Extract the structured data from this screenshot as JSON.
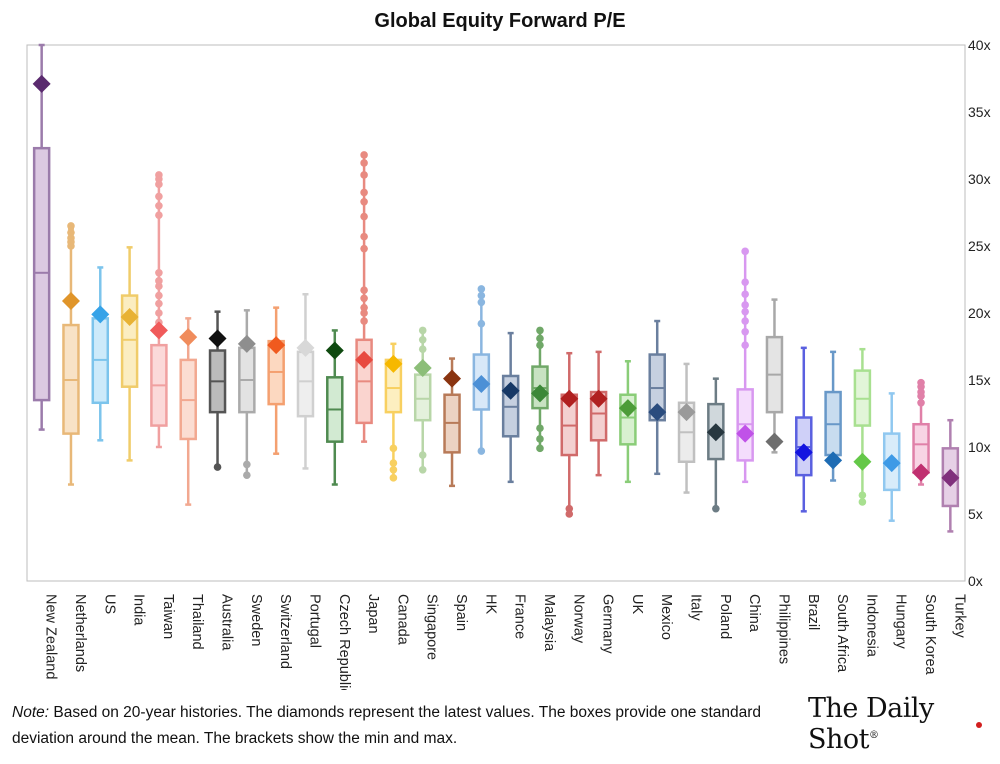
{
  "chart_data": {
    "type": "box",
    "title": "Global Equity Forward P/E",
    "ylabel": "",
    "ylim": [
      0,
      40
    ],
    "y_ticks": [
      "0x",
      "5x",
      "10x",
      "15x",
      "20x",
      "25x",
      "30x",
      "35x",
      "40x"
    ],
    "series": [
      {
        "name": "New Zealand",
        "color": "#9b7bab",
        "fill": "#dcc9e2",
        "diamond": "#5a2a6e",
        "min": 11.3,
        "max": 40,
        "q1": 13.5,
        "q3": 32.3,
        "median": 23.0,
        "latest": 37.1,
        "outliers": []
      },
      {
        "name": "Netherlands",
        "color": "#e8b878",
        "fill": "#f8e2c6",
        "diamond": "#e0952a",
        "min": 7.2,
        "max": 26.3,
        "q1": 11.0,
        "q3": 19.1,
        "median": 15.0,
        "latest": 20.9,
        "outliers": [
          25.0,
          25.3,
          25.6,
          26.0,
          26.5
        ]
      },
      {
        "name": "US",
        "color": "#7cc4ec",
        "fill": "#cdeafa",
        "diamond": "#36a3e8",
        "min": 10.5,
        "max": 23.4,
        "q1": 13.3,
        "q3": 19.6,
        "median": 16.5,
        "latest": 19.9,
        "outliers": []
      },
      {
        "name": "India",
        "color": "#f0cc6a",
        "fill": "#fbedc1",
        "diamond": "#e8b234",
        "min": 9.0,
        "max": 24.9,
        "q1": 14.5,
        "q3": 21.3,
        "median": 18.0,
        "latest": 19.7,
        "outliers": []
      },
      {
        "name": "Taiwan",
        "color": "#f0a0a0",
        "fill": "#fbd9d9",
        "diamond": "#f05a5a",
        "min": 10.0,
        "max": 30.3,
        "q1": 11.6,
        "q3": 17.6,
        "median": 14.6,
        "latest": 18.7,
        "outliers": [
          19.3,
          20.0,
          20.7,
          21.3,
          22.0,
          22.4,
          23.0,
          27.3,
          28.0,
          28.7,
          29.6,
          30.0,
          30.3
        ]
      },
      {
        "name": "Thailand",
        "color": "#f2a890",
        "fill": "#fbddd2",
        "diamond": "#f08c5c",
        "min": 5.7,
        "max": 19.6,
        "q1": 10.6,
        "q3": 16.5,
        "median": 13.5,
        "latest": 18.2,
        "outliers": []
      },
      {
        "name": "Australia",
        "color": "#555555",
        "fill": "#bbbbbb",
        "diamond": "#111111",
        "min": 8.5,
        "max": 20.1,
        "q1": 12.6,
        "q3": 17.2,
        "median": 14.9,
        "latest": 18.1,
        "outliers": [
          8.5
        ]
      },
      {
        "name": "Sweden",
        "color": "#aaaaaa",
        "fill": "#e2e2e2",
        "diamond": "#8e8e8e",
        "min": 7.9,
        "max": 20.2,
        "q1": 12.6,
        "q3": 17.4,
        "median": 15.0,
        "latest": 17.7,
        "outliers": [
          7.9,
          8.7
        ]
      },
      {
        "name": "Switzerland",
        "color": "#f4a070",
        "fill": "#fcd8c0",
        "diamond": "#f05a1e",
        "min": 9.5,
        "max": 20.4,
        "q1": 13.2,
        "q3": 17.9,
        "median": 15.6,
        "latest": 17.6,
        "outliers": []
      },
      {
        "name": "Portugal",
        "color": "#d0d0d0",
        "fill": "#eeeeee",
        "diamond": "#d8d8d8",
        "min": 8.4,
        "max": 21.4,
        "q1": 12.3,
        "q3": 17.1,
        "median": 14.9,
        "latest": 17.4,
        "outliers": []
      },
      {
        "name": "Czech Republic",
        "color": "#4f8a50",
        "fill": "#d2ead2",
        "diamond": "#0f4a10",
        "min": 7.2,
        "max": 18.7,
        "q1": 10.4,
        "q3": 15.2,
        "median": 12.8,
        "latest": 17.2,
        "outliers": []
      },
      {
        "name": "Japan",
        "color": "#e88a80",
        "fill": "#fad4cf",
        "diamond": "#e84a40",
        "min": 10.4,
        "max": 31.8,
        "q1": 11.8,
        "q3": 18.0,
        "median": 14.9,
        "latest": 16.5,
        "outliers": [
          19.4,
          20.0,
          20.4,
          21.1,
          21.7,
          24.8,
          25.7,
          27.2,
          28.3,
          29.0,
          30.3,
          31.2,
          31.8
        ]
      },
      {
        "name": "Canada",
        "color": "#f8d060",
        "fill": "#fdefc0",
        "diamond": "#f6b800",
        "min": 7.7,
        "max": 17.7,
        "q1": 12.6,
        "q3": 16.5,
        "median": 14.4,
        "latest": 16.2,
        "outliers": [
          7.7,
          8.3,
          8.8,
          9.9
        ]
      },
      {
        "name": "Singapore",
        "color": "#b8d6a8",
        "fill": "#e4f1dc",
        "diamond": "#8cbe78",
        "min": 8.3,
        "max": 18.8,
        "q1": 12.0,
        "q3": 15.4,
        "median": 13.6,
        "latest": 15.9,
        "outliers": [
          8.3,
          9.4,
          17.3,
          18.0,
          18.7
        ]
      },
      {
        "name": "Spain",
        "color": "#b87a58",
        "fill": "#ecd2c2",
        "diamond": "#8a3410",
        "min": 7.1,
        "max": 16.6,
        "q1": 9.6,
        "q3": 13.9,
        "median": 11.8,
        "latest": 15.1,
        "outliers": []
      },
      {
        "name": "HK",
        "color": "#8ab6e0",
        "fill": "#d8e8f8",
        "diamond": "#4c90d6",
        "min": 9.7,
        "max": 21.8,
        "q1": 12.8,
        "q3": 16.9,
        "median": 14.8,
        "latest": 14.7,
        "outliers": [
          9.7,
          19.2,
          20.8,
          21.3,
          21.8
        ]
      },
      {
        "name": "France",
        "color": "#6a7f9e",
        "fill": "#c6d0e0",
        "diamond": "#163866",
        "min": 7.4,
        "max": 18.5,
        "q1": 10.8,
        "q3": 15.3,
        "median": 13.0,
        "latest": 14.2,
        "outliers": []
      },
      {
        "name": "Malaysia",
        "color": "#70a868",
        "fill": "#c8e2c2",
        "diamond": "#3c8838",
        "min": 9.9,
        "max": 18.8,
        "q1": 12.9,
        "q3": 16.0,
        "median": 14.4,
        "latest": 14.0,
        "outliers": [
          9.9,
          10.6,
          11.4,
          17.6,
          18.1,
          18.7
        ]
      },
      {
        "name": "Norway",
        "color": "#d06a6a",
        "fill": "#f3d0d0",
        "diamond": "#b02020",
        "min": 5.0,
        "max": 17.0,
        "q1": 9.4,
        "q3": 13.9,
        "median": 11.6,
        "latest": 13.6,
        "outliers": [
          5.0,
          5.4
        ]
      },
      {
        "name": "Germany",
        "color": "#d06a6a",
        "fill": "#f3d0d0",
        "diamond": "#b02020",
        "min": 7.9,
        "max": 17.1,
        "q1": 10.5,
        "q3": 14.1,
        "median": 12.5,
        "latest": 13.6,
        "outliers": []
      },
      {
        "name": "UK",
        "color": "#8acd78",
        "fill": "#d8f0d0",
        "diamond": "#4c9c38",
        "min": 7.4,
        "max": 16.4,
        "q1": 10.2,
        "q3": 13.9,
        "median": 12.2,
        "latest": 12.9,
        "outliers": []
      },
      {
        "name": "Mexico",
        "color": "#6a7f9e",
        "fill": "#c6d0e0",
        "diamond": "#2a4c7e",
        "min": 8.0,
        "max": 19.4,
        "q1": 12.0,
        "q3": 16.9,
        "median": 14.4,
        "latest": 12.6,
        "outliers": []
      },
      {
        "name": "Italy",
        "color": "#c0c0c0",
        "fill": "#ececec",
        "diamond": "#9a9a9a",
        "min": 6.6,
        "max": 16.2,
        "q1": 8.9,
        "q3": 13.3,
        "median": 11.1,
        "latest": 12.6,
        "outliers": []
      },
      {
        "name": "Poland",
        "color": "#6c7c84",
        "fill": "#d0d8dc",
        "diamond": "#283840",
        "min": 5.4,
        "max": 15.1,
        "q1": 9.1,
        "q3": 13.2,
        "median": 11.1,
        "latest": 11.1,
        "outliers": [
          5.4
        ]
      },
      {
        "name": "China",
        "color": "#d898f0",
        "fill": "#f4ddfc",
        "diamond": "#c052e8",
        "min": 7.4,
        "max": 24.6,
        "q1": 9.0,
        "q3": 14.3,
        "median": 11.7,
        "latest": 11.0,
        "outliers": [
          17.6,
          18.6,
          19.4,
          20.1,
          20.6,
          21.4,
          22.3,
          24.6
        ]
      },
      {
        "name": "Philippines",
        "color": "#a8a8a8",
        "fill": "#e4e4e4",
        "diamond": "#6e6e6e",
        "min": 9.6,
        "max": 21.0,
        "q1": 12.6,
        "q3": 18.2,
        "median": 15.4,
        "latest": 10.4,
        "outliers": []
      },
      {
        "name": "Brazil",
        "color": "#5a60e0",
        "fill": "#cfd0f8",
        "diamond": "#1414e0",
        "min": 5.2,
        "max": 17.4,
        "q1": 7.9,
        "q3": 12.2,
        "median": 10.0,
        "latest": 9.6,
        "outliers": []
      },
      {
        "name": "South Africa",
        "color": "#6898c8",
        "fill": "#c8dcef",
        "diamond": "#1e6cb4",
        "min": 7.5,
        "max": 17.1,
        "q1": 9.4,
        "q3": 14.1,
        "median": 11.7,
        "latest": 9.0,
        "outliers": []
      },
      {
        "name": "Indonesia",
        "color": "#a8e090",
        "fill": "#e2f5d8",
        "diamond": "#64c848",
        "min": 5.9,
        "max": 17.3,
        "q1": 11.6,
        "q3": 15.7,
        "median": 13.6,
        "latest": 8.9,
        "outliers": [
          5.9,
          6.4
        ]
      },
      {
        "name": "Hungary",
        "color": "#90c8f0",
        "fill": "#d8ecfa",
        "diamond": "#3e9ae6",
        "min": 4.5,
        "max": 14.0,
        "q1": 6.8,
        "q3": 11.0,
        "median": 8.9,
        "latest": 8.8,
        "outliers": []
      },
      {
        "name": "South Korea",
        "color": "#e080a8",
        "fill": "#f8d4e4",
        "diamond": "#c03070",
        "min": 7.2,
        "max": 14.8,
        "q1": 8.1,
        "q3": 11.7,
        "median": 10.2,
        "latest": 8.1,
        "outliers": [
          13.3,
          13.8,
          14.1,
          14.5,
          14.8
        ]
      },
      {
        "name": "Turkey",
        "color": "#b080b0",
        "fill": "#e6d0e6",
        "diamond": "#80307c",
        "min": 3.7,
        "max": 12.0,
        "q1": 5.6,
        "q3": 9.9,
        "median": 7.6,
        "latest": 7.7,
        "outliers": []
      }
    ]
  },
  "note": {
    "label": "Note:",
    "text": " Based on 20-year histories. The diamonds represent the latest values. The boxes provide one standard deviation around the mean. The brackets show the min and max."
  },
  "logo": {
    "text": "The Daily Shot",
    "mark": "®"
  }
}
